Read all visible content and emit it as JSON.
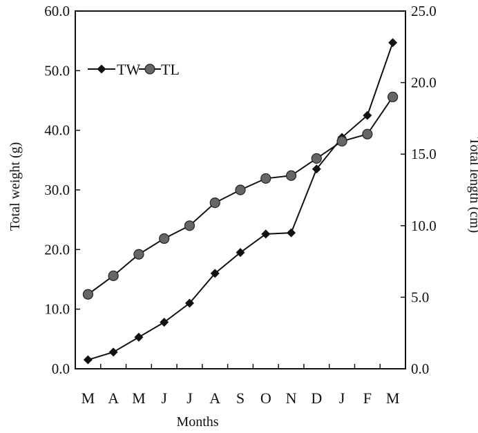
{
  "chart_data": {
    "type": "line",
    "categories": [
      "M",
      "A",
      "M",
      "J",
      "J",
      "A",
      "S",
      "O",
      "N",
      "D",
      "J",
      "F",
      "M"
    ],
    "series": [
      {
        "name": "TW",
        "axis": "left",
        "marker": "diamond",
        "color": "#111111",
        "values": [
          1.5,
          2.8,
          5.3,
          7.8,
          11.0,
          16.0,
          19.5,
          22.6,
          22.8,
          33.5,
          38.8,
          42.5,
          54.7
        ]
      },
      {
        "name": "TL",
        "axis": "right",
        "marker": "circle",
        "color": "#666666",
        "values": [
          5.2,
          6.5,
          8.0,
          9.1,
          10.0,
          11.6,
          12.5,
          13.3,
          13.5,
          14.7,
          15.9,
          16.4,
          19.0
        ]
      }
    ],
    "xlabel": "Months",
    "ylabel_left": "Total weight (g)",
    "ylabel_right": "Total length (cm)",
    "ylim_left": [
      0,
      60
    ],
    "ylim_right": [
      0,
      25
    ],
    "yticks_left": [
      "0.0",
      "10.0",
      "20.0",
      "30.0",
      "40.0",
      "50.0",
      "60.0"
    ],
    "yticks_right": [
      "0.0",
      "5.0",
      "10.0",
      "15.0",
      "20.0",
      "25.0"
    ],
    "grid": false,
    "legend_position": "top-left"
  }
}
